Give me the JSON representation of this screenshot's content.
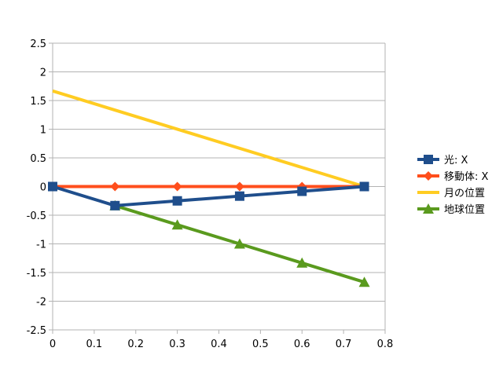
{
  "chart_data": {
    "type": "line",
    "title": "",
    "xlabel": "",
    "ylabel": "",
    "xlim": [
      0,
      0.8
    ],
    "ylim": [
      -2.5,
      2.5
    ],
    "x_ticks": [
      "0",
      "0.1",
      "0.2",
      "0.3",
      "0.4",
      "0.5",
      "0.6",
      "0.7",
      "0.8"
    ],
    "y_ticks": [
      "2.5",
      "2",
      "1.5",
      "1",
      "0.5",
      "0",
      "-0.5",
      "-1",
      "-1.5",
      "-2",
      "-2.5"
    ],
    "grid": "horizontal",
    "legend_position": "right",
    "series": [
      {
        "name": "光: X",
        "color": "#1f4e8c",
        "marker": "square",
        "x": [
          0,
          0.15,
          0.3,
          0.45,
          0.6,
          0.75
        ],
        "y": [
          0,
          -0.333,
          -0.25,
          -0.167,
          -0.083,
          0
        ]
      },
      {
        "name": "移動体: X",
        "color": "#ff4e1c",
        "marker": "diamond",
        "x": [
          0,
          0.15,
          0.3,
          0.45,
          0.6,
          0.75
        ],
        "y": [
          0,
          0,
          0,
          0,
          0,
          0
        ]
      },
      {
        "name": "月の位置",
        "color": "#ffcc22",
        "marker": "none",
        "x": [
          0,
          0.75
        ],
        "y": [
          1.667,
          0
        ]
      },
      {
        "name": "地球位置",
        "color": "#5a9a1e",
        "marker": "triangle",
        "x": [
          0.15,
          0.3,
          0.45,
          0.6,
          0.75
        ],
        "y": [
          -0.333,
          -0.667,
          -1,
          -1.333,
          -1.667
        ]
      }
    ]
  }
}
